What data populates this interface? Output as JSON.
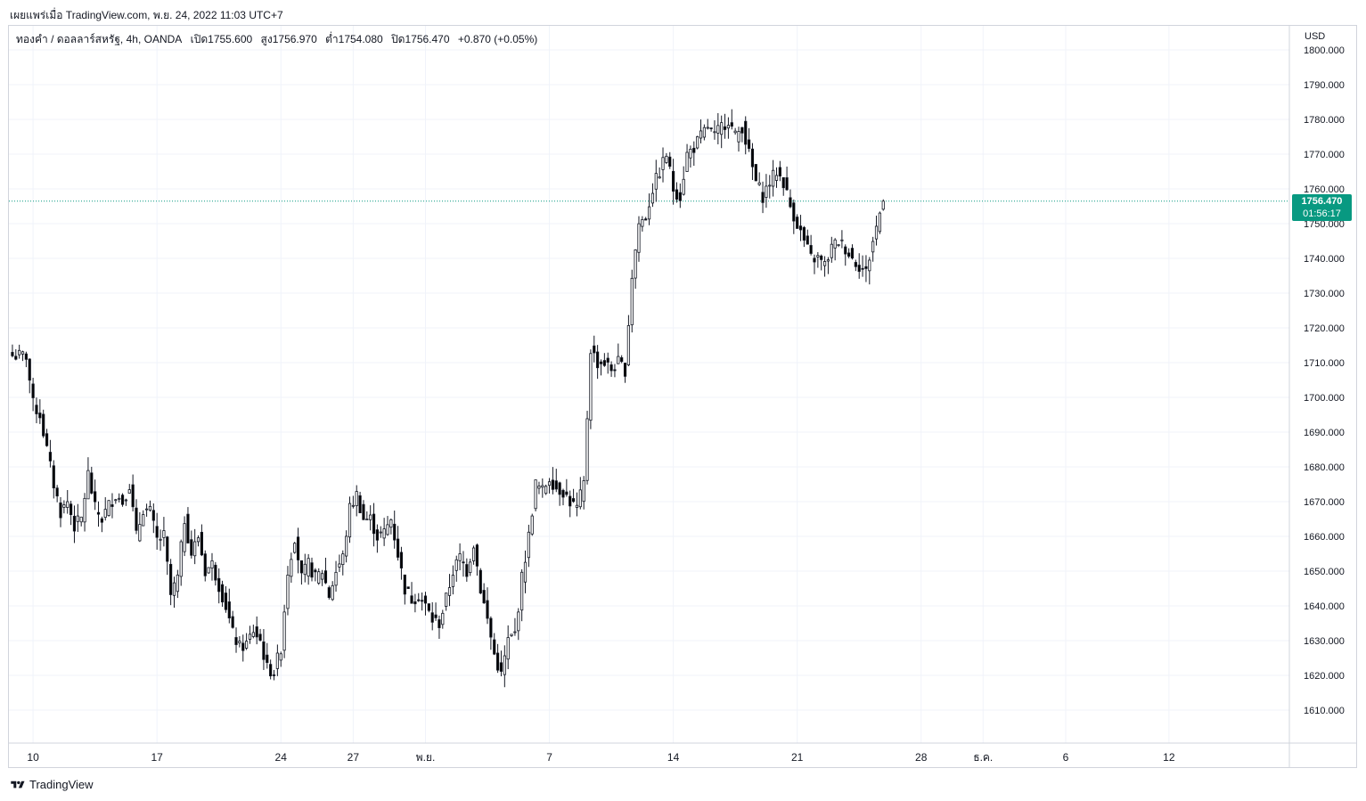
{
  "header": {
    "published": "เผยแพร่เมื่อ TradingView.com, พ.ย. 24, 2022 11:03 UTC+7"
  },
  "legend": {
    "symbol": "ทองคำ / ดอลลาร์สหรัฐ, 4h, OANDA",
    "open": "เปิด1755.600",
    "high": "สูง1756.970",
    "low": "ต่ำ1754.080",
    "close": "ปิด1756.470",
    "change": "+0.870 (+0.05%)"
  },
  "unit": "USD",
  "price_badge": {
    "price": "1756.470",
    "countdown": "01:56:17"
  },
  "footer": {
    "brand": "TradingView",
    "logo_icon": "tradingview-logo-icon"
  },
  "colors": {
    "up": "#089981",
    "down": "#f23645",
    "candle_up_fill": "#ffffff",
    "candle_down_fill": "#000000",
    "grid": "#f0f3fa",
    "current_line": "#089981"
  },
  "chart_data": {
    "type": "candlestick",
    "timeframe": "4h",
    "ylim": [
      1600,
      1800
    ],
    "y_ticks": [
      "1610.000",
      "1620.000",
      "1630.000",
      "1640.000",
      "1650.000",
      "1660.000",
      "1670.000",
      "1680.000",
      "1690.000",
      "1700.000",
      "1710.000",
      "1720.000",
      "1730.000",
      "1740.000",
      "1750.000",
      "1760.000",
      "1770.000",
      "1780.000",
      "1790.000",
      "1800.000"
    ],
    "x_ticks": [
      {
        "label": "10",
        "bar": 6
      },
      {
        "label": "17",
        "bar": 42
      },
      {
        "label": "24",
        "bar": 78
      },
      {
        "label": "27",
        "bar": 99
      },
      {
        "label": "พ.ย.",
        "bar": 120
      },
      {
        "label": "7",
        "bar": 156
      },
      {
        "label": "14",
        "bar": 192
      },
      {
        "label": "21",
        "bar": 228
      },
      {
        "label": "28",
        "bar": 264
      },
      {
        "label": "ธ.ค.",
        "bar": 282
      },
      {
        "label": "6",
        "bar": 306
      },
      {
        "label": "12",
        "bar": 336
      }
    ],
    "total_slots": 372,
    "current_price": 1756.47,
    "anchors": [
      [
        0,
        1712
      ],
      [
        4,
        1712
      ],
      [
        6,
        1698
      ],
      [
        8,
        1695
      ],
      [
        10,
        1685
      ],
      [
        12,
        1675
      ],
      [
        14,
        1667
      ],
      [
        16,
        1670
      ],
      [
        18,
        1663
      ],
      [
        20,
        1665
      ],
      [
        22,
        1678
      ],
      [
        24,
        1668
      ],
      [
        26,
        1665
      ],
      [
        28,
        1669
      ],
      [
        30,
        1672
      ],
      [
        32,
        1670
      ],
      [
        34,
        1675
      ],
      [
        36,
        1660
      ],
      [
        38,
        1668
      ],
      [
        40,
        1667
      ],
      [
        42,
        1659
      ],
      [
        44,
        1660
      ],
      [
        46,
        1643
      ],
      [
        48,
        1648
      ],
      [
        50,
        1665
      ],
      [
        52,
        1655
      ],
      [
        54,
        1660
      ],
      [
        56,
        1650
      ],
      [
        58,
        1652
      ],
      [
        60,
        1646
      ],
      [
        62,
        1640
      ],
      [
        64,
        1632
      ],
      [
        66,
        1628
      ],
      [
        68,
        1629
      ],
      [
        70,
        1633
      ],
      [
        72,
        1630
      ],
      [
        74,
        1622
      ],
      [
        76,
        1621
      ],
      [
        78,
        1628
      ],
      [
        80,
        1650
      ],
      [
        82,
        1660
      ],
      [
        84,
        1648
      ],
      [
        86,
        1652
      ],
      [
        88,
        1648
      ],
      [
        90,
        1650
      ],
      [
        92,
        1643
      ],
      [
        94,
        1650
      ],
      [
        96,
        1654
      ],
      [
        98,
        1668
      ],
      [
        100,
        1672
      ],
      [
        102,
        1665
      ],
      [
        104,
        1665
      ],
      [
        106,
        1660
      ],
      [
        108,
        1661
      ],
      [
        110,
        1665
      ],
      [
        112,
        1655
      ],
      [
        114,
        1645
      ],
      [
        116,
        1642
      ],
      [
        118,
        1643
      ],
      [
        120,
        1640
      ],
      [
        122,
        1636
      ],
      [
        124,
        1635
      ],
      [
        126,
        1642
      ],
      [
        128,
        1650
      ],
      [
        130,
        1654
      ],
      [
        132,
        1650
      ],
      [
        134,
        1658
      ],
      [
        136,
        1645
      ],
      [
        138,
        1636
      ],
      [
        140,
        1626
      ],
      [
        142,
        1620
      ],
      [
        144,
        1630
      ],
      [
        146,
        1632
      ],
      [
        148,
        1648
      ],
      [
        150,
        1660
      ],
      [
        152,
        1675
      ],
      [
        154,
        1673
      ],
      [
        156,
        1677
      ],
      [
        158,
        1674
      ],
      [
        160,
        1673
      ],
      [
        162,
        1670
      ],
      [
        164,
        1668
      ],
      [
        166,
        1675
      ],
      [
        168,
        1714
      ],
      [
        170,
        1710
      ],
      [
        172,
        1710
      ],
      [
        174,
        1708
      ],
      [
        176,
        1710
      ],
      [
        178,
        1708
      ],
      [
        180,
        1735
      ],
      [
        182,
        1750
      ],
      [
        184,
        1752
      ],
      [
        186,
        1760
      ],
      [
        188,
        1765
      ],
      [
        190,
        1770
      ],
      [
        192,
        1760
      ],
      [
        194,
        1758
      ],
      [
        196,
        1770
      ],
      [
        198,
        1772
      ],
      [
        200,
        1775
      ],
      [
        202,
        1778
      ],
      [
        204,
        1775
      ],
      [
        206,
        1778
      ],
      [
        208,
        1780
      ],
      [
        210,
        1775
      ],
      [
        212,
        1778
      ],
      [
        214,
        1770
      ],
      [
        216,
        1762
      ],
      [
        218,
        1758
      ],
      [
        220,
        1762
      ],
      [
        222,
        1765
      ],
      [
        224,
        1762
      ],
      [
        226,
        1755
      ],
      [
        228,
        1750
      ],
      [
        230,
        1745
      ],
      [
        232,
        1740
      ],
      [
        234,
        1740
      ],
      [
        236,
        1738
      ],
      [
        238,
        1743
      ],
      [
        240,
        1745
      ],
      [
        242,
        1743
      ],
      [
        244,
        1740
      ],
      [
        246,
        1738
      ],
      [
        248,
        1736
      ],
      [
        250,
        1745
      ],
      [
        252,
        1753
      ],
      [
        253,
        1756.47
      ]
    ]
  }
}
